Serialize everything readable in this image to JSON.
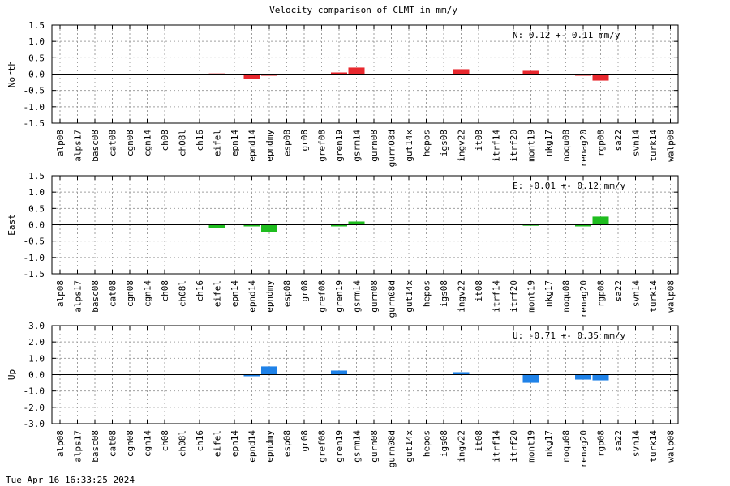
{
  "chart_data": {
    "type": "bar",
    "title": "Velocity comparison of CLMT in mm/y",
    "categories": [
      "alp08",
      "alps17",
      "basc08",
      "cat08",
      "cgn08",
      "cgn14",
      "ch08",
      "ch08l",
      "ch16",
      "eifel",
      "epn14",
      "epnd14",
      "epndmy",
      "esp08",
      "gr08",
      "gref08",
      "gren19",
      "gsrm14",
      "gurn08",
      "gurn08d",
      "gut14x",
      "hepos",
      "igs08",
      "ingv22",
      "it08",
      "itrf14",
      "itrf20",
      "mont19",
      "nkg17",
      "noqu08",
      "renag20",
      "rgp08",
      "sa22",
      "svn14",
      "turk14",
      "walp08"
    ],
    "panels": [
      {
        "ylabel": "North",
        "ylim": [
          -1.5,
          1.5
        ],
        "yticks": [
          "1.5",
          "1.0",
          "0.5",
          "0.0",
          "-0.5",
          "-1.0",
          "-1.5"
        ],
        "ytick_values": [
          1.5,
          1.0,
          0.5,
          0.0,
          -0.5,
          -1.0,
          -1.5
        ],
        "color": "#e8282e",
        "annotation": "N:   0.12 +-  0.11 mm/y",
        "values": [
          0,
          0,
          0,
          0,
          0,
          0,
          0,
          0,
          0,
          0.02,
          0,
          -0.15,
          -0.05,
          0,
          0,
          0,
          0.05,
          0.2,
          0,
          0,
          0,
          0,
          0,
          0.15,
          0,
          0,
          0,
          0.1,
          0,
          0,
          -0.05,
          -0.2,
          0,
          0,
          0,
          0
        ]
      },
      {
        "ylabel": "East",
        "ylim": [
          -1.5,
          1.5
        ],
        "yticks": [
          "1.5",
          "1.0",
          "0.5",
          "0.0",
          "-0.5",
          "-1.0",
          "-1.5"
        ],
        "ytick_values": [
          1.5,
          1.0,
          0.5,
          0.0,
          -0.5,
          -1.0,
          -1.5
        ],
        "color": "#1fbd1f",
        "annotation": "E:  -0.01 +-  0.12 mm/y",
        "values": [
          0,
          0,
          0,
          0,
          0,
          0,
          0,
          0,
          0,
          -0.1,
          0,
          -0.03,
          -0.22,
          0,
          0,
          0,
          -0.02,
          0.1,
          0,
          0,
          0,
          0,
          0,
          0,
          0,
          0,
          0,
          0.02,
          0,
          0,
          -0.02,
          0.25,
          0,
          0,
          0,
          0
        ]
      },
      {
        "ylabel": "Up",
        "ylim": [
          -3.0,
          3.0
        ],
        "yticks": [
          "3.0",
          "2.0",
          "1.0",
          "0.0",
          "-1.0",
          "-2.0",
          "-3.0"
        ],
        "ytick_values": [
          3.0,
          2.0,
          1.0,
          0.0,
          -1.0,
          -2.0,
          -3.0
        ],
        "color": "#1f82e8",
        "annotation": "U:  -0.71 +-  0.35 mm/y",
        "values": [
          0,
          0,
          0,
          0,
          0,
          0,
          0,
          0,
          0,
          0,
          0,
          -0.05,
          0.5,
          0,
          0,
          0,
          0.25,
          0,
          0,
          0,
          0,
          0,
          0,
          0.15,
          0,
          0,
          0,
          -0.5,
          0,
          0,
          -0.3,
          -0.35,
          0,
          0,
          0,
          0
        ]
      }
    ],
    "grid": true
  },
  "footer": "Tue Apr 16 16:33:25 2024"
}
